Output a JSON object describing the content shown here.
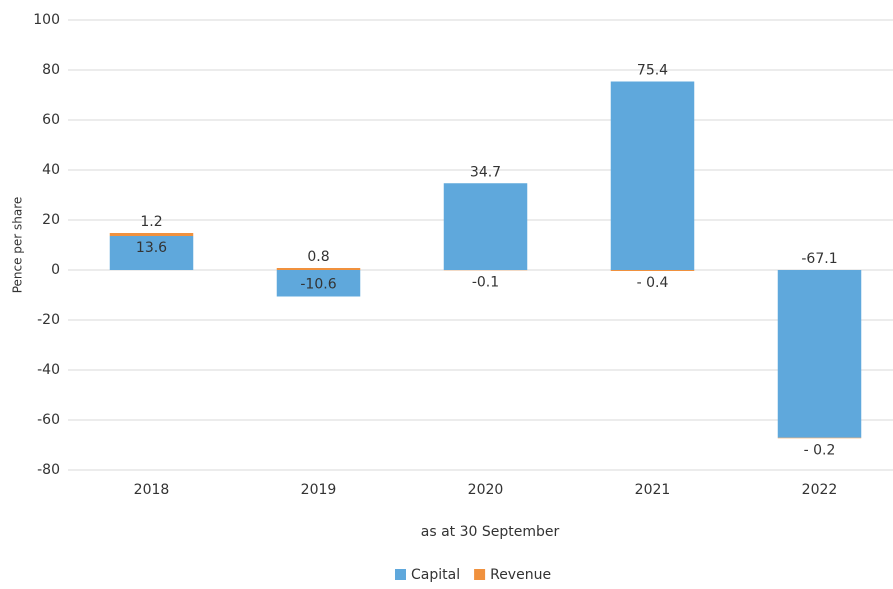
{
  "chart_data": {
    "type": "stacked_bar",
    "y_label": "Pence per share",
    "x_label": "as at 30 September",
    "categories": [
      "2018",
      "2019",
      "2020",
      "2021",
      "2022"
    ],
    "series": [
      {
        "name": "Capital",
        "color": "#5fa8dc",
        "values": [
          13.6,
          -10.6,
          34.7,
          75.4,
          -67.1
        ],
        "value_labels": [
          "13.6",
          "-10.6",
          "34.7",
          "75.4",
          "-67.1"
        ]
      },
      {
        "name": "Revenue",
        "color": "#f0913e",
        "values": [
          1.2,
          0.8,
          -0.1,
          -0.4,
          -0.2
        ],
        "value_labels": [
          "1.2",
          "0.8",
          "-0.1",
          "- 0.4",
          "- 0.2"
        ]
      }
    ],
    "ylim": [
      -80,
      100
    ],
    "yticks": [
      -80,
      -60,
      -40,
      -20,
      0,
      20,
      40,
      60,
      80,
      100
    ],
    "grid": true,
    "legend": "bottom"
  }
}
